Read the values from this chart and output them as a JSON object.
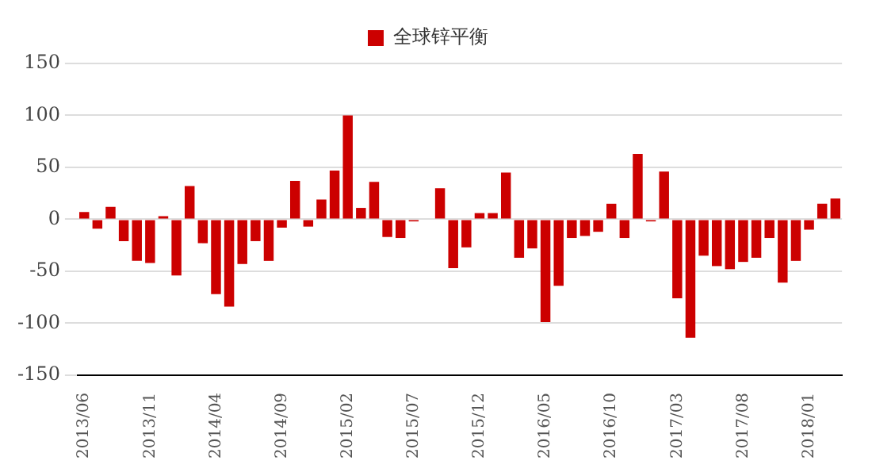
{
  "chart_data": {
    "type": "bar",
    "categories": [
      "2013/06",
      null,
      null,
      null,
      null,
      "2013/11",
      null,
      null,
      null,
      null,
      "2014/04",
      null,
      null,
      null,
      null,
      "2014/09",
      null,
      null,
      null,
      null,
      "2015/02",
      null,
      null,
      null,
      null,
      "2015/07",
      null,
      null,
      null,
      null,
      "2015/12",
      null,
      null,
      null,
      null,
      "2016/05",
      null,
      null,
      null,
      null,
      "2016/10",
      null,
      null,
      null,
      null,
      "2017/03",
      null,
      null,
      null,
      null,
      "2017/08",
      null,
      null,
      null,
      null,
      "2018/01",
      null,
      null
    ],
    "series": [
      {
        "name": "全球锌平衡",
        "color": "#cc0000",
        "values": [
          7,
          -9,
          12,
          -21,
          -40,
          -42,
          3,
          -54,
          32,
          -23,
          -72,
          -84,
          -43,
          -21,
          -40,
          -8,
          37,
          -7,
          19,
          47,
          100,
          11,
          36,
          -17,
          -18,
          -2,
          0,
          30,
          -47,
          -27,
          6,
          6,
          45,
          -37,
          -28,
          -99,
          -64,
          -18,
          -16,
          -12,
          15,
          -18,
          63,
          -2,
          46,
          -76,
          -114,
          -35,
          -45,
          -48,
          -41,
          -37,
          -18,
          -61,
          -40,
          -10,
          15,
          20
        ]
      }
    ],
    "ylim": [
      -150,
      150
    ],
    "yticks": [
      -150,
      -100,
      -50,
      0,
      50,
      100,
      150
    ],
    "grid": "y",
    "legend": "top"
  }
}
